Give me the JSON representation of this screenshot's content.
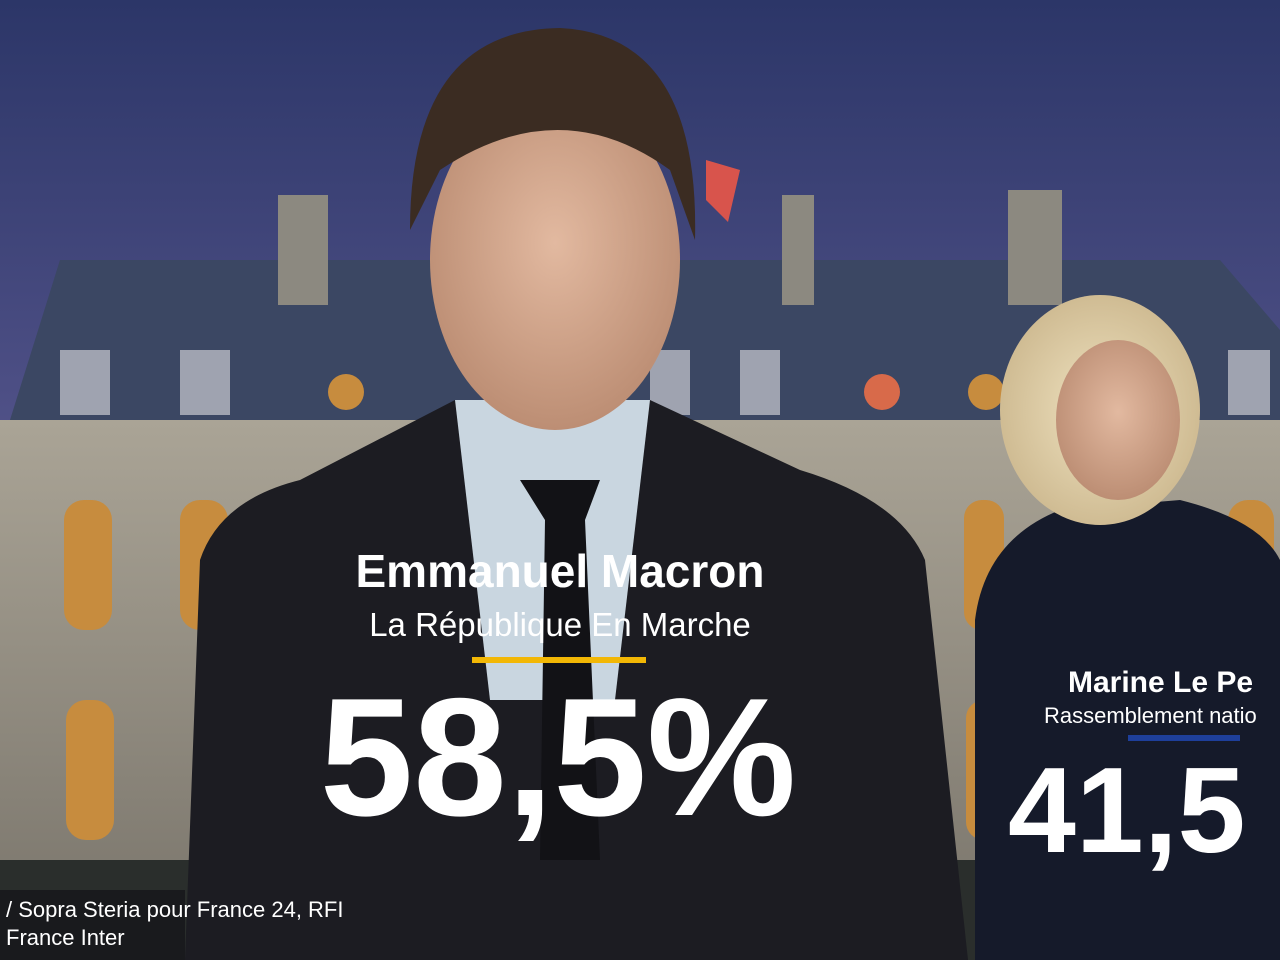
{
  "candidates": [
    {
      "name": "Emmanuel Macron",
      "party": "La République En Marche",
      "score": "58,5%"
    },
    {
      "name": "Marine Le Pe",
      "party": "Rassemblement natio",
      "score": "41,5"
    }
  ],
  "source": [
    "/ Sopra Steria pour France 24, RFI",
    "France Inter"
  ]
}
